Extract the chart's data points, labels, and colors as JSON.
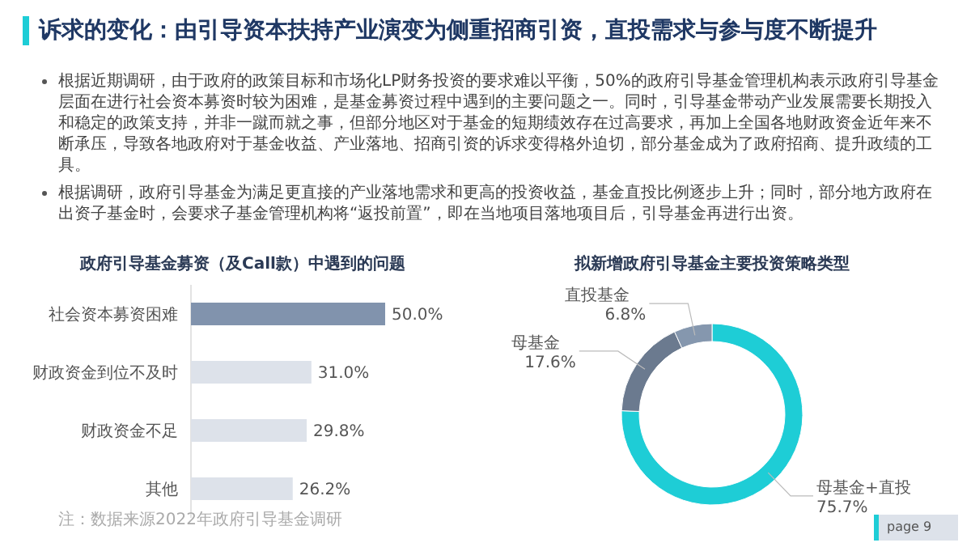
{
  "chart_data": [
    {
      "type": "other",
      "title": "诉求的变化：由引导资本扶持产业演变为侧重招商引资，直投需求与参与度不断提升",
      "annotations": [
        "根据近期调研，由于政府的政策目标和市场化LP财务投资的要求难以平衡，50%的政府引导基金管理机构表示政府引导基金层面在进行社会资本募资时较为困难，是基金募资过程中遇到的主要问题之一。同时，引导基金带动产业发展需要长期投入和稳定的政策支持，并非一蹴而就之事，但部分地区对于基金的短期绩效存在过高要求，再加上全国各地财政资金近年来不断承压，导致各地政府对于基金收益、产业落地、招商引资的诉求变得格外迫切，部分基金成为了政府招商、提升政绩的工具。",
        "根据调研，政府引导基金为满足更直接的产业落地需求和更高的投资收益，基金直投比例逐步上升；同时，部分地方政府在出资子基金时，会要求子基金管理机构将“返投前置”，即在当地项目落地项目后，引导基金再进行出资。",
        "page 9"
      ]
    },
    {
      "type": "bar",
      "orientation": "horizontal",
      "title": "政府引导基金募资（及Call款）中遇到的问题",
      "categories": [
        "社会资本募资困难",
        "财政资金到位不及时",
        "财政资金不足",
        "其他"
      ],
      "values": [
        50.0,
        31.0,
        29.8,
        26.2
      ],
      "value_labels": [
        "50.0%",
        "31.0%",
        "29.8%",
        "26.2%"
      ],
      "colors": [
        "#8193ad",
        "#dde2ea",
        "#dde2ea",
        "#dde2ea"
      ],
      "annotations": [
        "注：数据来源2022年政府引导基金调研"
      ]
    },
    {
      "type": "donut",
      "title": "拟新增政府引导基金主要投资策略类型",
      "categories": [
        "母基金+直投",
        "母基金",
        "直投基金"
      ],
      "values": [
        75.7,
        17.6,
        6.8
      ],
      "value_labels": [
        "75.7%",
        "17.6%",
        "6.8%"
      ],
      "colors": [
        "#1ecdd6",
        "#6b7a8f",
        "#8597ae"
      ]
    }
  ]
}
